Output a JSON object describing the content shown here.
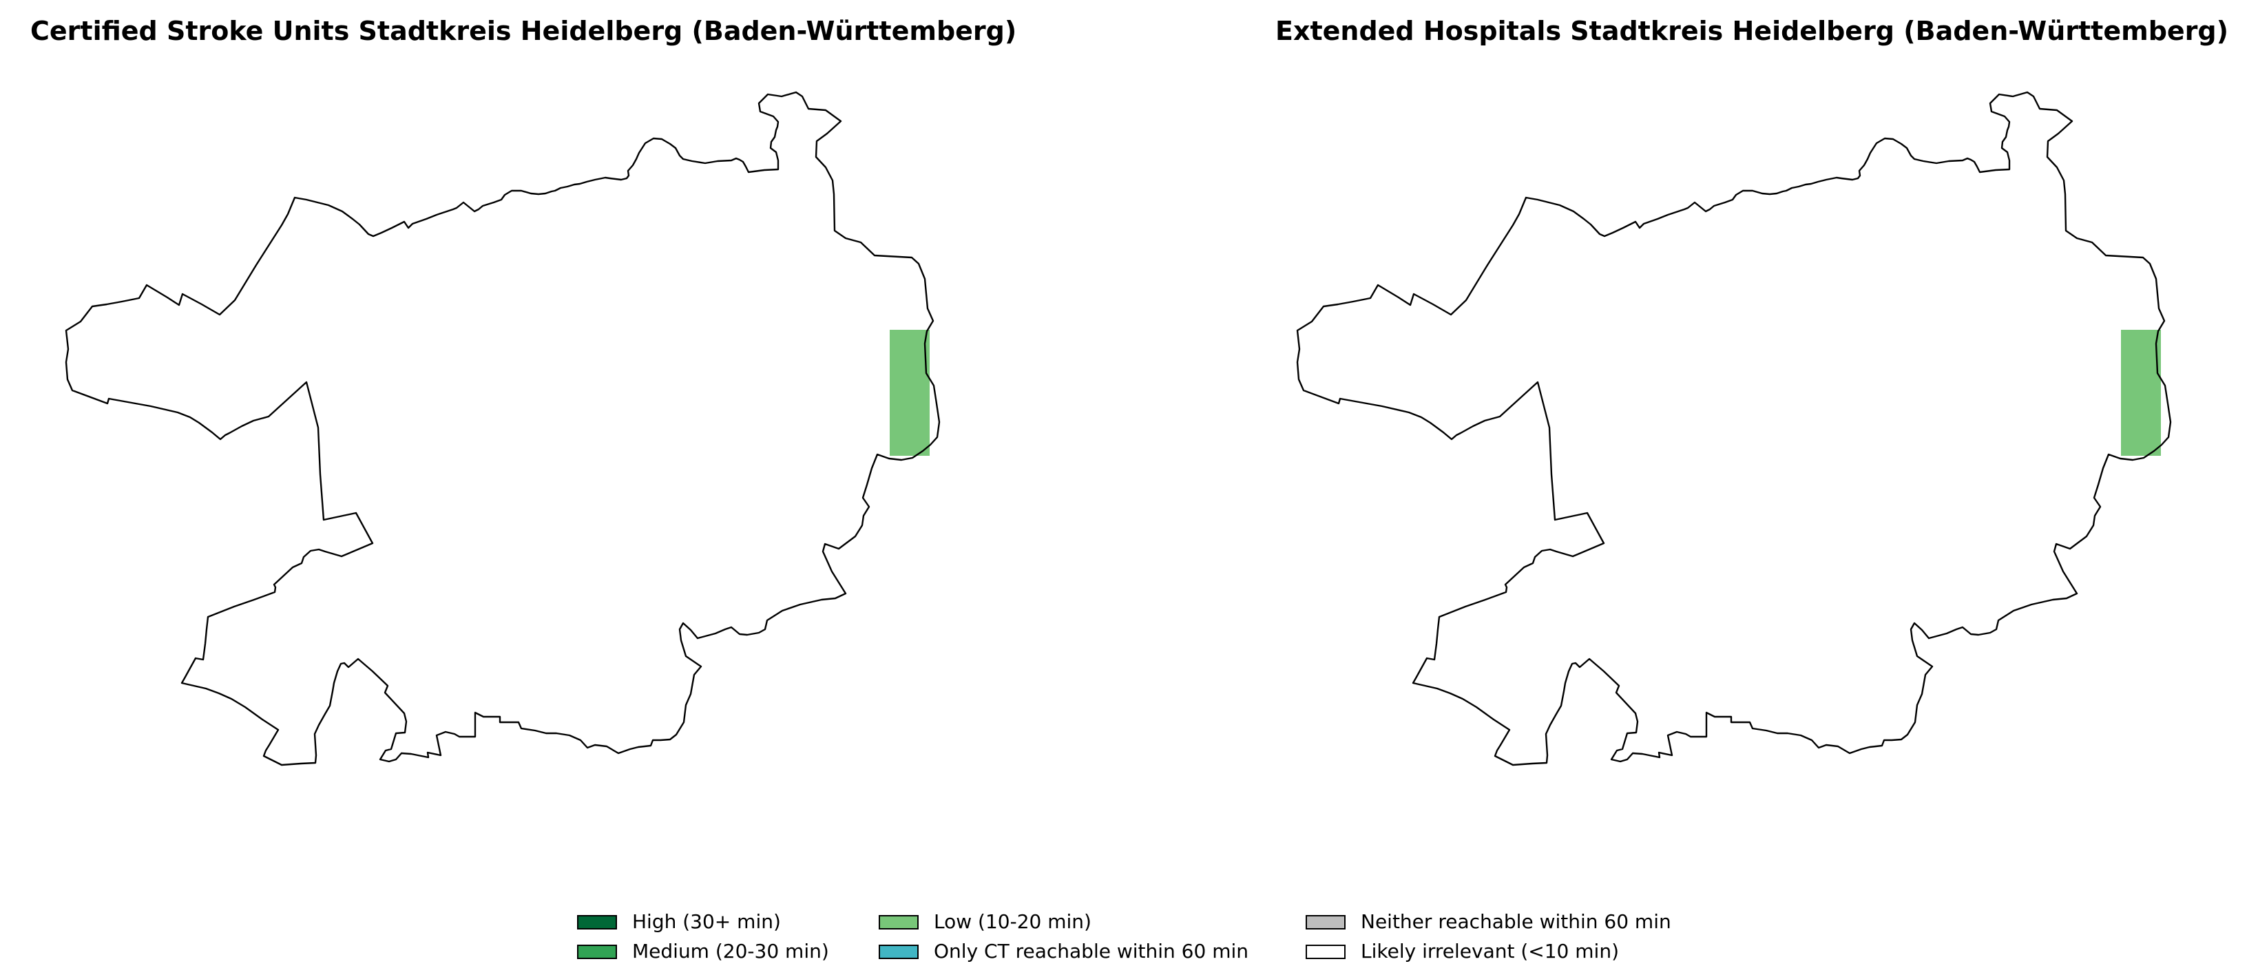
{
  "maps": [
    {
      "title": "Certified Stroke Units Stadtkreis Heidelberg (Baden-Württemberg)",
      "highlighted_area_category": "Low (10-20 min)"
    },
    {
      "title": "Extended Hospitals Stadtkreis Heidelberg (Baden-Württemberg)",
      "highlighted_area_category": "Low (10-20 min)"
    }
  ],
  "legend": {
    "items": [
      {
        "label": "High (30+ min)",
        "color": "#006837"
      },
      {
        "label": "Medium (20-30 min)",
        "color": "#31a354"
      },
      {
        "label": "Low (10-20 min)",
        "color": "#78c679"
      },
      {
        "label": "Only CT reachable within 60 min",
        "color": "#41b6c4"
      },
      {
        "label": "Neither reachable within 60 min",
        "color": "#bdbdbd"
      },
      {
        "label": "Likely irrelevant (<10 min)",
        "color": "#ffffff"
      }
    ]
  },
  "colors": {
    "boundary_stroke": "#000000",
    "background": "#ffffff"
  }
}
